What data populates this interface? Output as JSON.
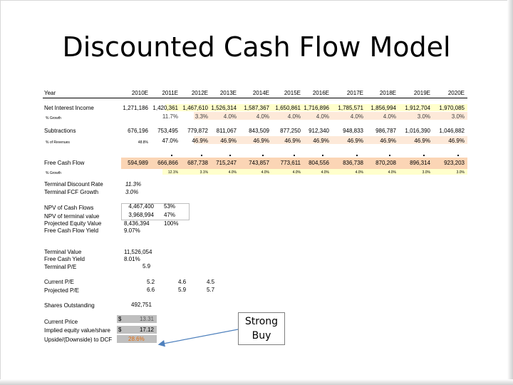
{
  "title": "Discounted Cash Flow Model",
  "header": {
    "label": "Year",
    "years": [
      "2010E",
      "2011E",
      "2012E",
      "2013E",
      "2014E",
      "2015E",
      "2016E",
      "2017E",
      "2018E",
      "2019E",
      "2020E"
    ]
  },
  "net_interest_income": {
    "label": "Net Interest Income",
    "values": [
      "1,271,186",
      "1,420,361",
      "1,467,610",
      "1,526,314",
      "1,587,367",
      "1,650,861",
      "1,716,896",
      "1,785,571",
      "1,856,994",
      "1,912,704",
      "1,970,085"
    ],
    "growth_label": "% Growth",
    "growth": [
      "",
      "11.7%",
      "3.3%",
      "4.0%",
      "4.0%",
      "4.0%",
      "4.0%",
      "4.0%",
      "4.0%",
      "3.0%",
      "3.0%"
    ]
  },
  "subtractions": {
    "label": "Subtractions",
    "values": [
      "676,196",
      "753,495",
      "779,872",
      "811,067",
      "843,509",
      "877,250",
      "912,340",
      "948,833",
      "986,787",
      "1,016,390",
      "1,046,882"
    ],
    "pct_label": "% of Revenues",
    "pct": [
      "48.8%",
      "47.0%",
      "46.9%",
      "46.9%",
      "46.9%",
      "46.9%",
      "46.9%",
      "46.9%",
      "46.9%",
      "46.9%",
      "46.9%"
    ]
  },
  "fcf": {
    "label": "Free Cash Flow",
    "values": [
      "594,989",
      "666,866",
      "687,738",
      "715,247",
      "743,857",
      "773,611",
      "804,556",
      "836,738",
      "870,208",
      "896,314",
      "923,203"
    ],
    "growth_label": "% Growth",
    "growth": [
      "",
      "12.1%",
      "3.1%",
      "4.0%",
      "4.0%",
      "4.0%",
      "4.0%",
      "4.0%",
      "4.0%",
      "3.0%",
      "3.0%"
    ]
  },
  "assumptions": {
    "discount_rate_label": "Terminal Discount Rate",
    "discount_rate": "11.3%",
    "fcf_growth_label": "Terminal FCF Growth",
    "fcf_growth": "3.0%"
  },
  "npv": {
    "npv_cf_label": "NPV of Cash Flows",
    "npv_cf": "4,467,400",
    "npv_cf_pct": "53%",
    "npv_tv_label": "NPV of terminal value",
    "npv_tv": "3,968,994",
    "npv_tv_pct": "47%",
    "equity_label": "Projected Equity Value",
    "equity": "8,436,394",
    "equity_pct": "100%",
    "fcf_yield_label": "Free Cash Flow Yield",
    "fcf_yield": "9.07%"
  },
  "terminal": {
    "tv_label": "Terminal Value",
    "tv": "11,526,054",
    "fcy_label": "Free Cash Yield",
    "fcy": "8.01%",
    "pe_label": "Terminal P/E",
    "pe": "5.9"
  },
  "pe": {
    "current_label": "Current P/E",
    "current": [
      "5.2",
      "4.6",
      "4.5"
    ],
    "projected_label": "Projected P/E",
    "projected": [
      "6.6",
      "5.9",
      "5.7"
    ]
  },
  "shares": {
    "label": "Shares Outstanding",
    "value": "492,751"
  },
  "valuation": {
    "price_label": "Current Price",
    "price_currency": "$",
    "price": "13.31",
    "implied_label": "Implied equity value/share",
    "implied_currency": "$",
    "implied": "17.12",
    "upside_label": "Upside/(Downside) to DCF",
    "upside": "28.6%"
  },
  "callout": {
    "line1": "Strong",
    "line2": "Buy"
  },
  "colors": {
    "tan": "#fbd5b5",
    "tan_light": "#fde9d9",
    "pale_yellow": "#ffffcc",
    "upside_orange": "#e26b0a"
  }
}
